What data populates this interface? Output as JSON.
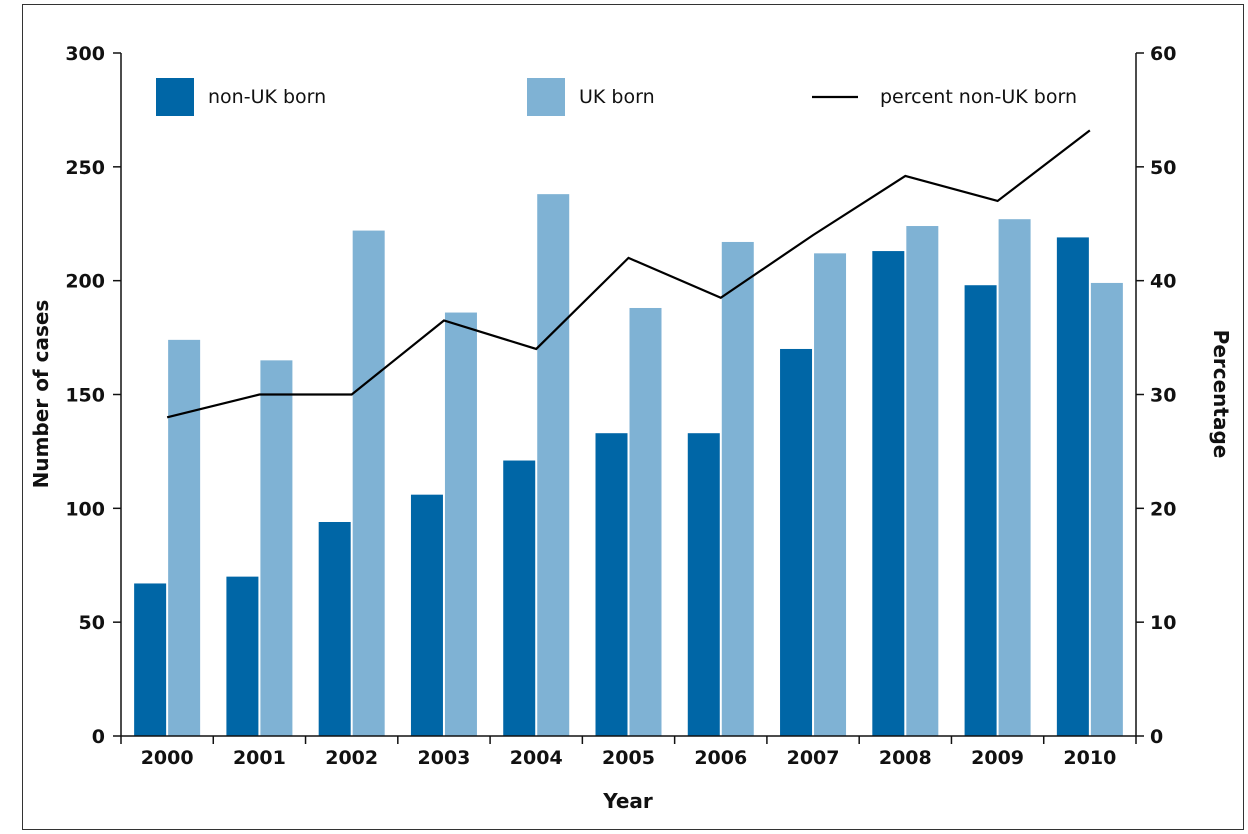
{
  "chart_data": {
    "type": "bar",
    "categories": [
      "2000",
      "2001",
      "2002",
      "2003",
      "2004",
      "2005",
      "2006",
      "2007",
      "2008",
      "2009",
      "2010"
    ],
    "series": [
      {
        "name": "non-UK born",
        "type": "bar",
        "axis": "left",
        "color": "#0066a6",
        "values": [
          67,
          70,
          94,
          106,
          121,
          133,
          133,
          170,
          213,
          198,
          219
        ]
      },
      {
        "name": "UK born",
        "type": "bar",
        "axis": "left",
        "color": "#7fb2d4",
        "values": [
          174,
          165,
          222,
          186,
          238,
          188,
          217,
          212,
          224,
          227,
          199
        ]
      },
      {
        "name": "percent non-UK born",
        "type": "line",
        "axis": "right",
        "color": "#000000",
        "values": [
          28,
          30,
          30,
          36.5,
          34,
          42,
          38.5,
          44,
          49.2,
          47,
          53.2
        ]
      }
    ],
    "xlabel": "Year",
    "ylabel": "Number of cases",
    "y2label": "Percentage",
    "ylim": [
      0,
      300
    ],
    "y2lim": [
      0,
      60
    ],
    "yticks": [
      "0",
      "50",
      "100",
      "150",
      "200",
      "250",
      "300"
    ],
    "y2ticks": [
      "0",
      "10",
      "20",
      "30",
      "40",
      "50",
      "60"
    ],
    "legend_position": "top",
    "grid": false
  }
}
